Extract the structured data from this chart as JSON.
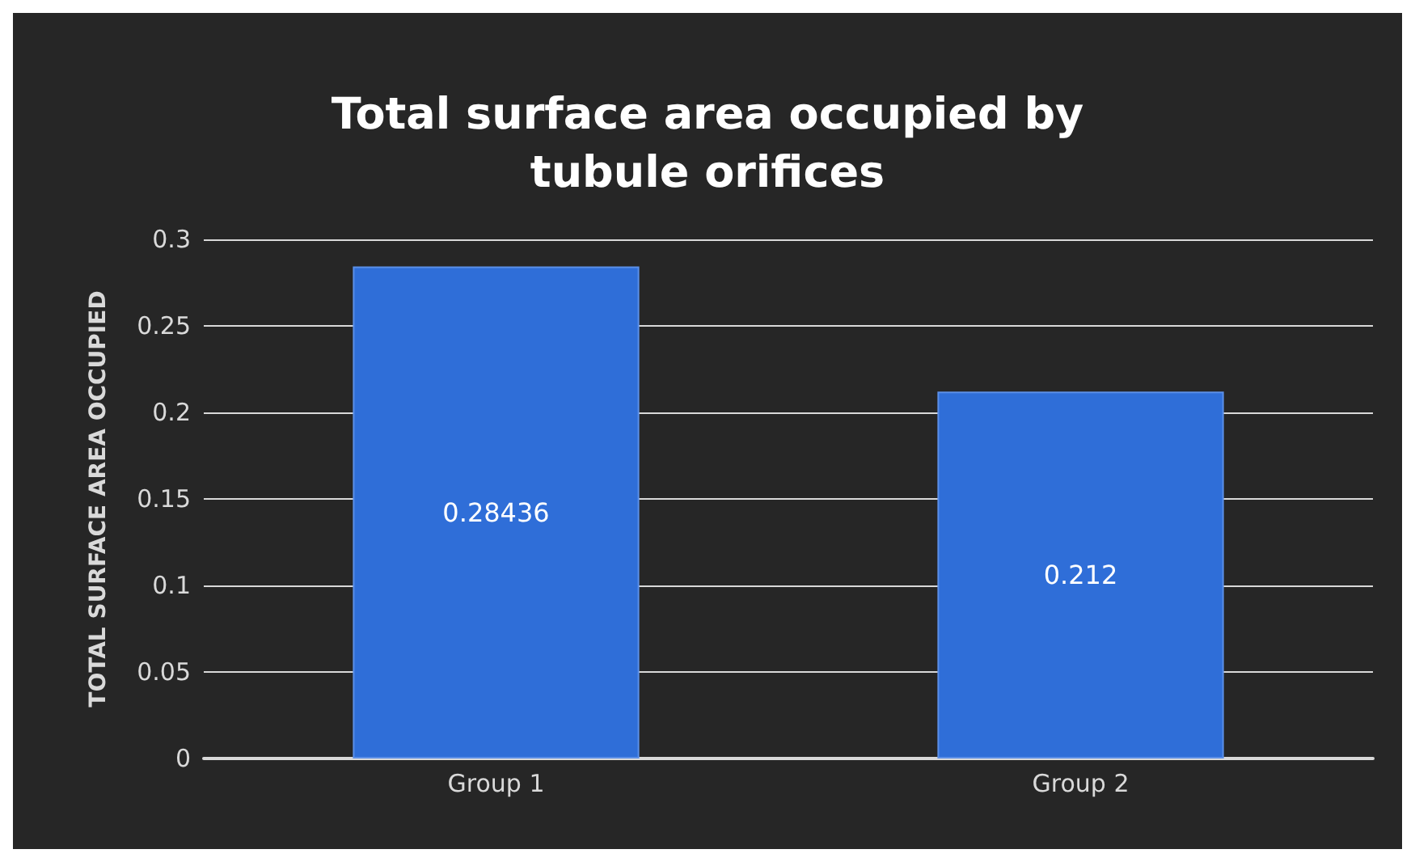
{
  "chart_data": {
    "type": "bar",
    "title": "Total surface area occupied by\ntubule orifices",
    "ylabel": "TOTAL SURFACE AREA OCCUPIED",
    "categories": [
      "Group 1",
      "Group 2"
    ],
    "values": [
      0.28436,
      0.212
    ],
    "color": "#2f6ed8",
    "ylim": [
      0,
      0.3
    ],
    "yticks": [
      0,
      0.05,
      0.1,
      0.15,
      0.2,
      0.25,
      0.3
    ],
    "grid": "y",
    "data_labels": true
  }
}
